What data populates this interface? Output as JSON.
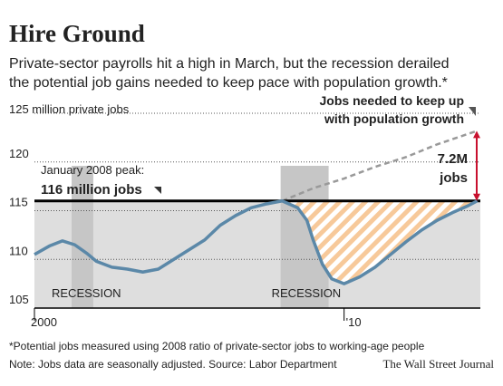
{
  "chart_data": {
    "type": "line",
    "title": "Hire Ground",
    "subtitle": [
      "Private-sector payrolls hit a high in March, but the recession derailed",
      "the potential job gains needed to keep pace with population growth.*"
    ],
    "x": [
      2000.0,
      2000.5,
      2000.9,
      2001.3,
      2001.7,
      2002.0,
      2002.5,
      2003.0,
      2003.5,
      2004.0,
      2004.5,
      2005.0,
      2005.5,
      2006.0,
      2006.5,
      2007.0,
      2007.5,
      2008.0,
      2008.5,
      2008.8,
      2009.0,
      2009.3,
      2009.6,
      2010.0,
      2010.5,
      2011.0,
      2011.5,
      2012.0,
      2012.5,
      2013.0,
      2013.5,
      2014.0,
      2014.3
    ],
    "values": [
      110.5,
      111.4,
      111.9,
      111.5,
      110.6,
      109.8,
      109.2,
      109.0,
      108.7,
      109.0,
      110.0,
      111.0,
      112.0,
      113.5,
      114.5,
      115.3,
      115.7,
      116.0,
      115.3,
      114.0,
      112.0,
      109.5,
      108.0,
      107.5,
      108.2,
      109.2,
      110.5,
      111.8,
      113.0,
      114.0,
      114.8,
      115.5,
      116.0
    ],
    "color": "#5b88a8",
    "projection": {
      "x": [
        2008.0,
        2009.0,
        2010.0,
        2011.0,
        2012.0,
        2013.0,
        2014.3
      ],
      "values": [
        116.0,
        117.3,
        118.3,
        119.5,
        120.5,
        121.8,
        123.2
      ],
      "label": [
        "Jobs needed to keep up",
        "with population growth"
      ]
    },
    "peak": {
      "value": 116,
      "label": [
        "January 2008 peak:",
        "116 million jobs"
      ]
    },
    "gap": {
      "value": 7.2,
      "label": [
        "7.2M",
        "jobs"
      ]
    },
    "recessions": [
      {
        "label": "RECESSION",
        "start": 2001.2,
        "end": 2001.9
      },
      {
        "label": "RECESSION",
        "start": 2007.95,
        "end": 2009.5
      }
    ],
    "xlim": [
      2000,
      2014.4
    ],
    "ylim": [
      105,
      125
    ],
    "xticks": [
      2000,
      {
        "value": 2010,
        "label": "'10"
      }
    ],
    "yticks": [
      105,
      110,
      115,
      120,
      {
        "value": 125,
        "label": "125 million private jobs"
      }
    ],
    "grid": true,
    "footnotes": [
      "*Potential jobs measured using 2008 ratio of private-sector jobs to working-age people",
      "Note: Jobs data are seasonally adjusted.  Source: Labor Department"
    ],
    "credit": "The Wall Street Journal"
  }
}
